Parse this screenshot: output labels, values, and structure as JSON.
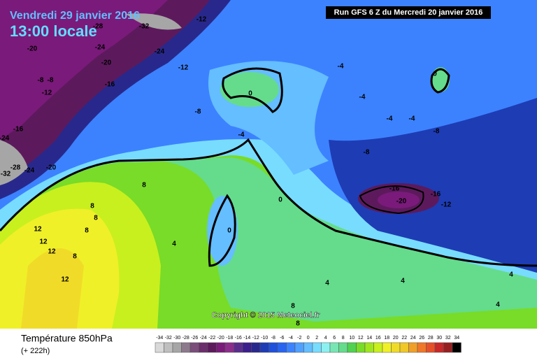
{
  "header": {
    "date": "Vendredi 29 janvier 2016",
    "time": "13:00 locale",
    "run": "Run GFS 6 Z du Mercredi 20 janvier 2016"
  },
  "footer": {
    "variable": "Température 850hPa",
    "lead": "(+ 222h)"
  },
  "copyright": "Copyright © 2015 Meteociel.fr",
  "legend": {
    "ticks": [
      -34,
      -32,
      -30,
      -28,
      -26,
      -24,
      -22,
      -20,
      -18,
      -16,
      -14,
      -12,
      -10,
      -8,
      -6,
      -4,
      -2,
      0,
      2,
      4,
      6,
      8,
      10,
      12,
      14,
      16,
      18,
      20,
      22,
      24,
      26,
      28,
      30,
      32,
      34
    ],
    "colors": [
      "#d9d9d9",
      "#bfbfbf",
      "#a6a6a6",
      "#8c7a8c",
      "#7a4d7a",
      "#6b2d6b",
      "#5c1a5c",
      "#7a1a7a",
      "#8c2d8c",
      "#5a2d8c",
      "#3c1e8c",
      "#28288c",
      "#1e3cb4",
      "#1e50dc",
      "#2864f0",
      "#3c82ff",
      "#50a0ff",
      "#64beff",
      "#78dcff",
      "#8cf0f0",
      "#78e6b4",
      "#64dc8c",
      "#50d250",
      "#78dc28",
      "#a0e61e",
      "#c8f01e",
      "#f0f028",
      "#f0dc28",
      "#f0c828",
      "#f0a028",
      "#f07828",
      "#e65028",
      "#c82828",
      "#962020",
      "#000000"
    ]
  },
  "contour_labels": [
    -20,
    -24,
    -24,
    -20,
    -28,
    -32,
    -12,
    -12,
    -16,
    -8,
    -8,
    -12,
    -8,
    -4,
    0,
    -4,
    0,
    -4,
    -4,
    -4,
    -8,
    -8,
    -16,
    -16,
    -20,
    -12,
    -16,
    -24,
    -28,
    -24,
    -20,
    -32,
    8,
    8,
    8,
    12,
    12,
    12,
    8,
    8,
    12,
    4,
    0,
    0,
    4,
    4,
    4,
    4,
    8,
    8
  ]
}
